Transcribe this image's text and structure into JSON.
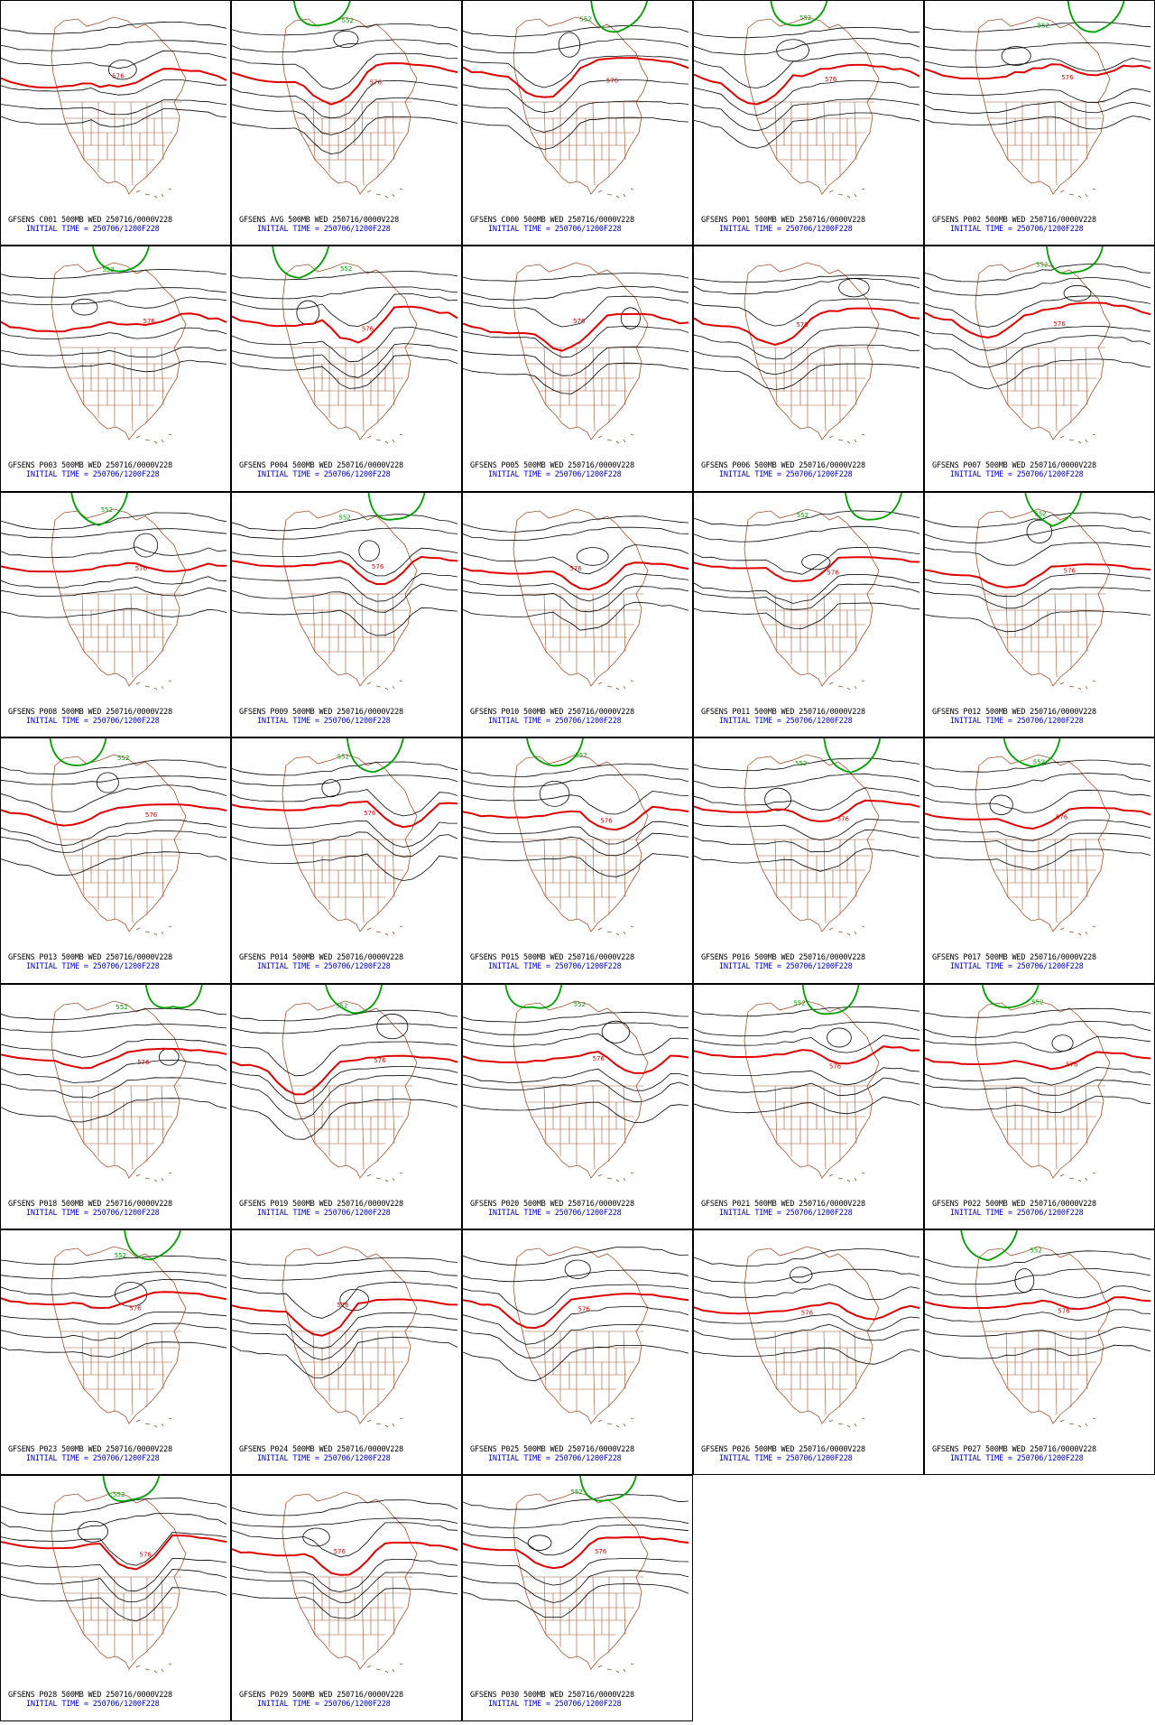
{
  "page": {
    "description_title": "GFS ensemble 500mb height panels",
    "initial_time_label": "INITIAL TIME = 250706/1200F228"
  },
  "colors": {
    "height_contour": "#000000",
    "line_576": "#e00000",
    "line_552": "#00a000",
    "geography": "#a0522d",
    "caption_top": "#000000",
    "caption_bottom": "#0000cc"
  },
  "panels": [
    {
      "id": "C001",
      "title": "GFSENS C001 500MB WED 250716/0000V228",
      "init": "INITIAL TIME = 250706/1200F228",
      "contour_labels": [
        "576"
      ]
    },
    {
      "id": "AVG",
      "title": "GFSENS AVG 500MB WED 250716/0000V228",
      "init": "INITIAL TIME = 250706/1200F228",
      "contour_labels": [
        "552",
        "576"
      ]
    },
    {
      "id": "C000",
      "title": "GFSENS C000 500MB WED 250716/0000V228",
      "init": "INITIAL TIME = 250706/1200F228",
      "contour_labels": [
        "552",
        "576"
      ]
    },
    {
      "id": "P001",
      "title": "GFSENS P001 500MB WED 250716/0000V228",
      "init": "INITIAL TIME = 250706/1200F228",
      "contour_labels": [
        "552",
        "576"
      ]
    },
    {
      "id": "P002",
      "title": "GFSENS P002 500MB WED 250716/0000V228",
      "init": "INITIAL TIME = 250706/1200F228",
      "contour_labels": [
        "552",
        "576"
      ]
    },
    {
      "id": "P003",
      "title": "GFSENS P003 500MB WED 250716/0000V228",
      "init": "INITIAL TIME = 250706/1200F228",
      "contour_labels": [
        "552",
        "576"
      ]
    },
    {
      "id": "P004",
      "title": "GFSENS P004 500MB WED 250716/0000V228",
      "init": "INITIAL TIME = 250706/1200F228",
      "contour_labels": [
        "552",
        "576"
      ]
    },
    {
      "id": "P005",
      "title": "GFSENS P005 500MB WED 250716/0000V228",
      "init": "INITIAL TIME = 250706/1200F228",
      "contour_labels": [
        "576"
      ]
    },
    {
      "id": "P006",
      "title": "GFSENS P006 500MB WED 250716/0000V228",
      "init": "INITIAL TIME = 250706/1200F228",
      "contour_labels": [
        "576"
      ]
    },
    {
      "id": "P007",
      "title": "GFSENS P007 500MB WED 250716/0000V228",
      "init": "INITIAL TIME = 250706/1200F228",
      "contour_labels": [
        "552",
        "576"
      ]
    },
    {
      "id": "P008",
      "title": "GFSENS P008 500MB WED 250716/0000V228",
      "init": "INITIAL TIME = 250706/1200F228",
      "contour_labels": [
        "552",
        "576"
      ]
    },
    {
      "id": "P009",
      "title": "GFSENS P009 500MB WED 250716/0000V228",
      "init": "INITIAL TIME = 250706/1200F228",
      "contour_labels": [
        "552",
        "576"
      ]
    },
    {
      "id": "P010",
      "title": "GFSENS P010 500MB WED 250716/0000V228",
      "init": "INITIAL TIME = 250706/1200F228",
      "contour_labels": [
        "576"
      ]
    },
    {
      "id": "P011",
      "title": "GFSENS P011 500MB WED 250716/0000V228",
      "init": "INITIAL TIME = 250706/1200F228",
      "contour_labels": [
        "552",
        "576"
      ]
    },
    {
      "id": "P012",
      "title": "GFSENS P012 500MB WED 250716/0000V228",
      "init": "INITIAL TIME = 250706/1200F228",
      "contour_labels": [
        "552",
        "576"
      ]
    },
    {
      "id": "P013",
      "title": "GFSENS P013 500MB WED 250716/0000V228",
      "init": "INITIAL TIME = 250706/1200F228",
      "contour_labels": [
        "552",
        "576"
      ]
    },
    {
      "id": "P014",
      "title": "GFSENS P014 500MB WED 250716/0000V228",
      "init": "INITIAL TIME = 250706/1200F228",
      "contour_labels": [
        "552",
        "576"
      ]
    },
    {
      "id": "P015",
      "title": "GFSENS P015 500MB WED 250716/0000V228",
      "init": "INITIAL TIME = 250706/1200F228",
      "contour_labels": [
        "552",
        "576"
      ]
    },
    {
      "id": "P016",
      "title": "GFSENS P016 500MB WED 250716/0000V228",
      "init": "INITIAL TIME = 250706/1200F228",
      "contour_labels": [
        "552",
        "576"
      ]
    },
    {
      "id": "P017",
      "title": "GFSENS P017 500MB WED 250716/0000V228",
      "init": "INITIAL TIME = 250706/1200F228",
      "contour_labels": [
        "552",
        "576"
      ]
    },
    {
      "id": "P018",
      "title": "GFSENS P018 500MB WED 250716/0000V228",
      "init": "INITIAL TIME = 250706/1200F228",
      "contour_labels": [
        "552",
        "576"
      ]
    },
    {
      "id": "P019",
      "title": "GFSENS P019 500MB WED 250716/0000V228",
      "init": "INITIAL TIME = 250706/1200F228",
      "contour_labels": [
        "552",
        "576"
      ]
    },
    {
      "id": "P020",
      "title": "GFSENS P020 500MB WED 250716/0000V228",
      "init": "INITIAL TIME = 250706/1200F228",
      "contour_labels": [
        "552",
        "576"
      ]
    },
    {
      "id": "P021",
      "title": "GFSENS P021 500MB WED 250716/0000V228",
      "init": "INITIAL TIME = 250706/1200F228",
      "contour_labels": [
        "552",
        "576"
      ]
    },
    {
      "id": "P022",
      "title": "GFSENS P022 500MB WED 250716/0000V228",
      "init": "INITIAL TIME = 250706/1200F228",
      "contour_labels": [
        "552",
        "576"
      ]
    },
    {
      "id": "P023",
      "title": "GFSENS P023 500MB WED 250716/0000V228",
      "init": "INITIAL TIME = 250706/1200F228",
      "contour_labels": [
        "552",
        "576"
      ]
    },
    {
      "id": "P024",
      "title": "GFSENS P024 500MB WED 250716/0000V228",
      "init": "INITIAL TIME = 250706/1200F228",
      "contour_labels": [
        "576"
      ]
    },
    {
      "id": "P025",
      "title": "GFSENS P025 500MB WED 250716/0000V228",
      "init": "INITIAL TIME = 250706/1200F228",
      "contour_labels": [
        "576"
      ]
    },
    {
      "id": "P026",
      "title": "GFSENS P026 500MB WED 250716/0000V228",
      "init": "INITIAL TIME = 250706/1200F228",
      "contour_labels": [
        "576"
      ]
    },
    {
      "id": "P027",
      "title": "GFSENS P027 500MB WED 250716/0000V228",
      "init": "INITIAL TIME = 250706/1200F228",
      "contour_labels": [
        "552",
        "576"
      ]
    },
    {
      "id": "P028",
      "title": "GFSENS P028 500MB WED 250716/0000V228",
      "init": "INITIAL TIME = 250706/1200F228",
      "contour_labels": [
        "552",
        "576"
      ]
    },
    {
      "id": "P029",
      "title": "GFSENS P029 500MB WED 250716/0000V228",
      "init": "INITIAL TIME = 250706/1200F228",
      "contour_labels": [
        "576"
      ]
    },
    {
      "id": "P030",
      "title": "GFSENS P030 500MB WED 250716/0000V228",
      "init": "INITIAL TIME = 250706/1200F228",
      "contour_labels": [
        "552",
        "576"
      ]
    }
  ]
}
